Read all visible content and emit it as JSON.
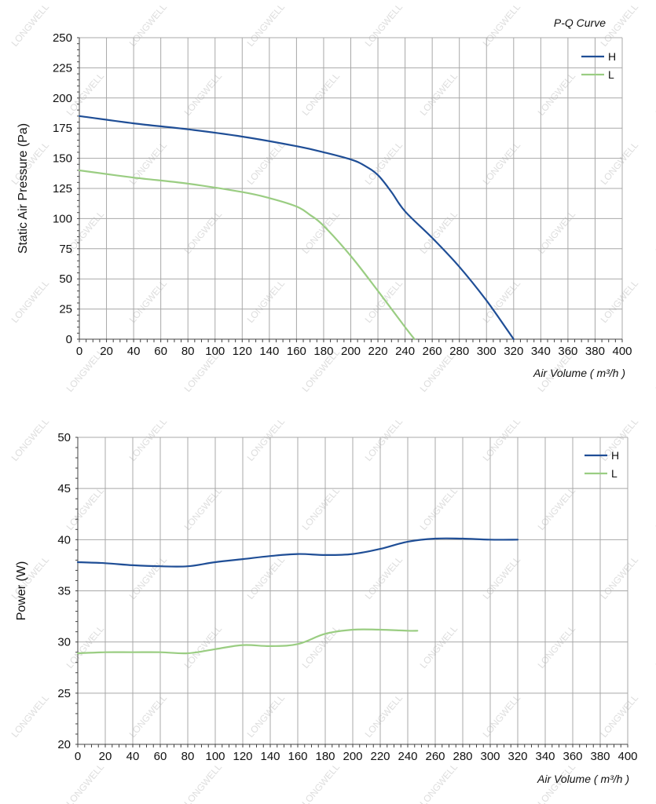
{
  "colors": {
    "H": "#1f4e96",
    "L": "#9acd82"
  },
  "watermark": "LONGWELL",
  "chart_data": [
    {
      "type": "line",
      "title": "P-Q Curve",
      "xlabel": "Air Volume ( m³/h )",
      "ylabel": "Static Air Pressure  (Pa)",
      "xlim": [
        0,
        400
      ],
      "ylim": [
        0,
        250
      ],
      "xticks": [
        "0",
        "20",
        "40",
        "60",
        "80",
        "100",
        "120",
        "140",
        "160",
        "180",
        "200",
        "220",
        "240",
        "260",
        "280",
        "300",
        "320",
        "340",
        "360",
        "380",
        "400"
      ],
      "yticks": [
        "0",
        "25",
        "50",
        "75",
        "100",
        "125",
        "150",
        "175",
        "200",
        "225",
        "250"
      ],
      "grid": true,
      "legend": "top-right",
      "series": [
        {
          "name": "H",
          "x": [
            0,
            40,
            80,
            120,
            160,
            180,
            200,
            210,
            220,
            230,
            240,
            260,
            280,
            300,
            320
          ],
          "y": [
            185,
            179,
            174,
            168,
            160,
            155,
            149,
            144,
            136,
            122,
            106,
            84,
            60,
            32,
            0
          ]
        },
        {
          "name": "L",
          "x": [
            0,
            40,
            80,
            120,
            140,
            160,
            170,
            180,
            200,
            220,
            240,
            247
          ],
          "y": [
            140,
            134,
            129,
            122,
            117,
            110,
            103,
            94,
            69,
            40,
            10,
            0
          ]
        }
      ]
    },
    {
      "type": "line",
      "title": "",
      "xlabel": "Air Volume ( m³/h )",
      "ylabel": "Power  (W)",
      "xlim": [
        0,
        400
      ],
      "ylim": [
        20,
        50
      ],
      "xticks": [
        "0",
        "20",
        "40",
        "60",
        "80",
        "100",
        "120",
        "140",
        "160",
        "180",
        "200",
        "220",
        "240",
        "260",
        "280",
        "300",
        "320",
        "340",
        "360",
        "380",
        "400"
      ],
      "yticks": [
        "20",
        "25",
        "30",
        "35",
        "40",
        "45",
        "50"
      ],
      "grid": true,
      "legend": "top-right",
      "series": [
        {
          "name": "H",
          "x": [
            0,
            20,
            40,
            60,
            80,
            100,
            120,
            140,
            160,
            180,
            200,
            220,
            240,
            260,
            280,
            300,
            320
          ],
          "y": [
            37.8,
            37.7,
            37.5,
            37.4,
            37.4,
            37.8,
            38.1,
            38.4,
            38.6,
            38.5,
            38.6,
            39.1,
            39.8,
            40.1,
            40.1,
            40.0,
            40.0
          ]
        },
        {
          "name": "L",
          "x": [
            0,
            20,
            40,
            60,
            80,
            100,
            120,
            140,
            160,
            180,
            200,
            220,
            240,
            247
          ],
          "y": [
            28.9,
            29.0,
            29.0,
            29.0,
            28.9,
            29.3,
            29.7,
            29.6,
            29.8,
            30.8,
            31.2,
            31.2,
            31.1,
            31.1
          ]
        }
      ]
    }
  ]
}
